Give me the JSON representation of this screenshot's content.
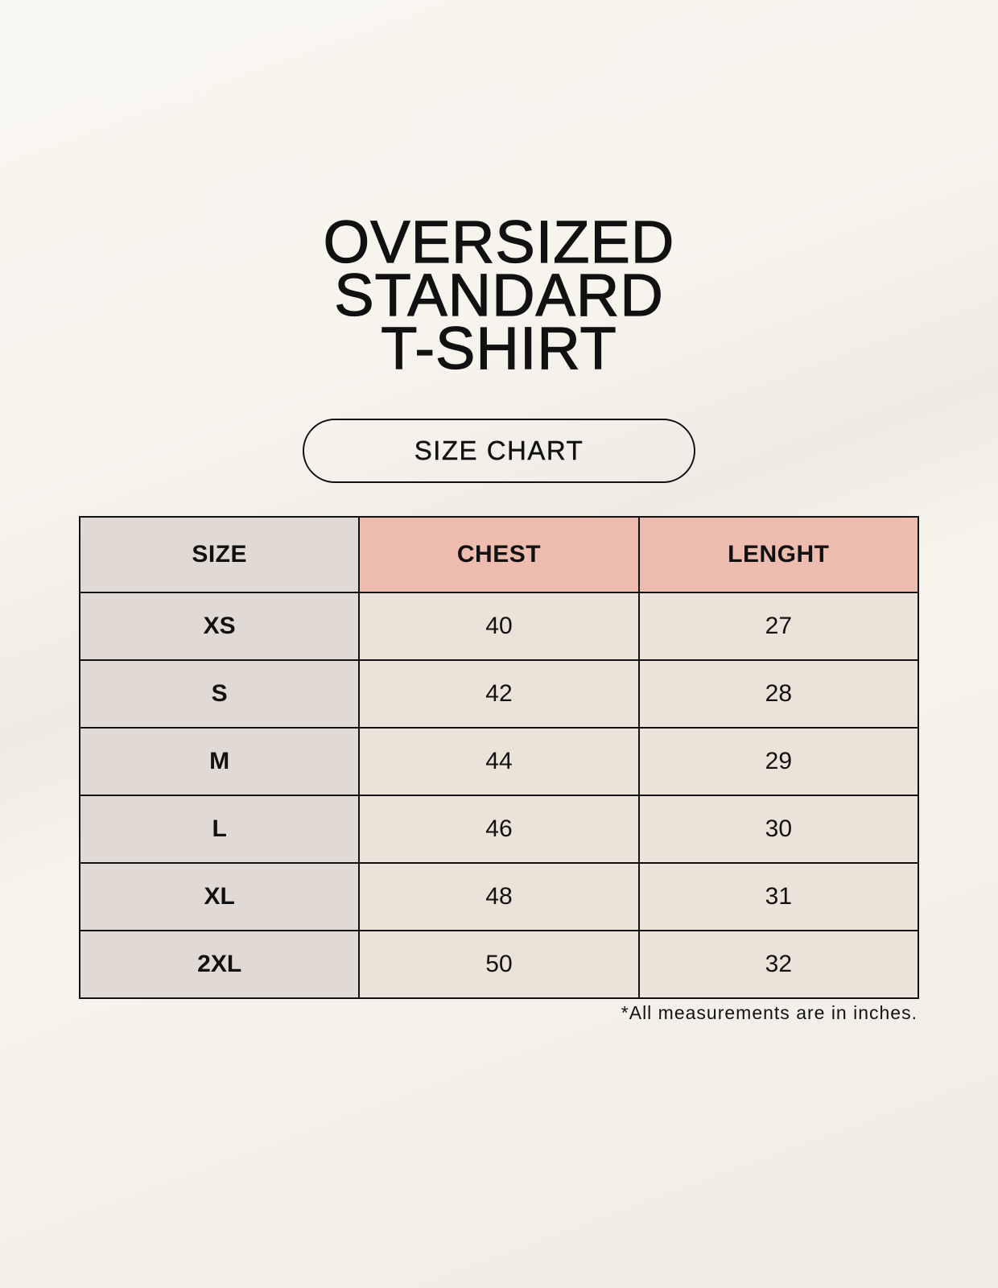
{
  "title_lines": [
    "OVERSIZED",
    "STANDARD",
    "T-SHIRT"
  ],
  "badge": "SIZE CHART",
  "table": {
    "headers": [
      "SIZE",
      "CHEST",
      "LENGHT"
    ],
    "rows": [
      [
        "XS",
        "40",
        "27"
      ],
      [
        "S",
        "42",
        "28"
      ],
      [
        "M",
        "44",
        "29"
      ],
      [
        "L",
        "46",
        "30"
      ],
      [
        "XL",
        "48",
        "31"
      ],
      [
        "2XL",
        "50",
        "32"
      ]
    ]
  },
  "footnote": "*All measurements are in inches.",
  "colors": {
    "size_column": "#e1d9d3",
    "header_accent": "#edbcae",
    "body_cells": "#ebe3d8"
  }
}
